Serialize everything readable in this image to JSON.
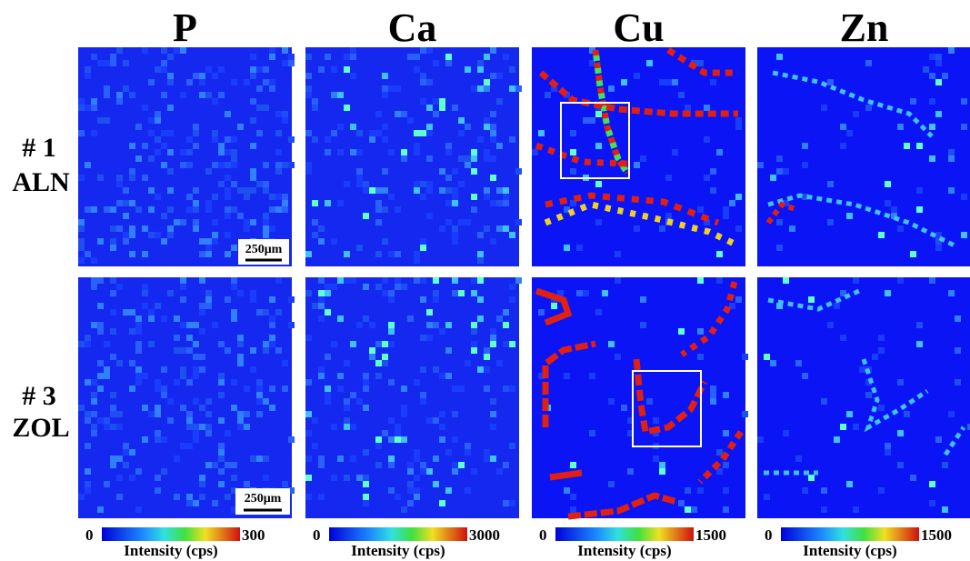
{
  "columns": [
    "P",
    "Ca",
    "Cu",
    "Zn"
  ],
  "rows": [
    {
      "number": "# 1",
      "drug": "ALN"
    },
    {
      "number": "# 3",
      "drug": "ZOL"
    }
  ],
  "scale_bars": [
    "250μm",
    "250μm"
  ],
  "colorbars": [
    {
      "min": 0,
      "max": 300,
      "label": "Intensity (cps)"
    },
    {
      "min": 0,
      "max": 3000,
      "label": "Intensity (cps)"
    },
    {
      "min": 0,
      "max": 1500,
      "label": "Intensity (cps)"
    },
    {
      "min": 0,
      "max": 1500,
      "label": "Intensity (cps)"
    }
  ]
}
